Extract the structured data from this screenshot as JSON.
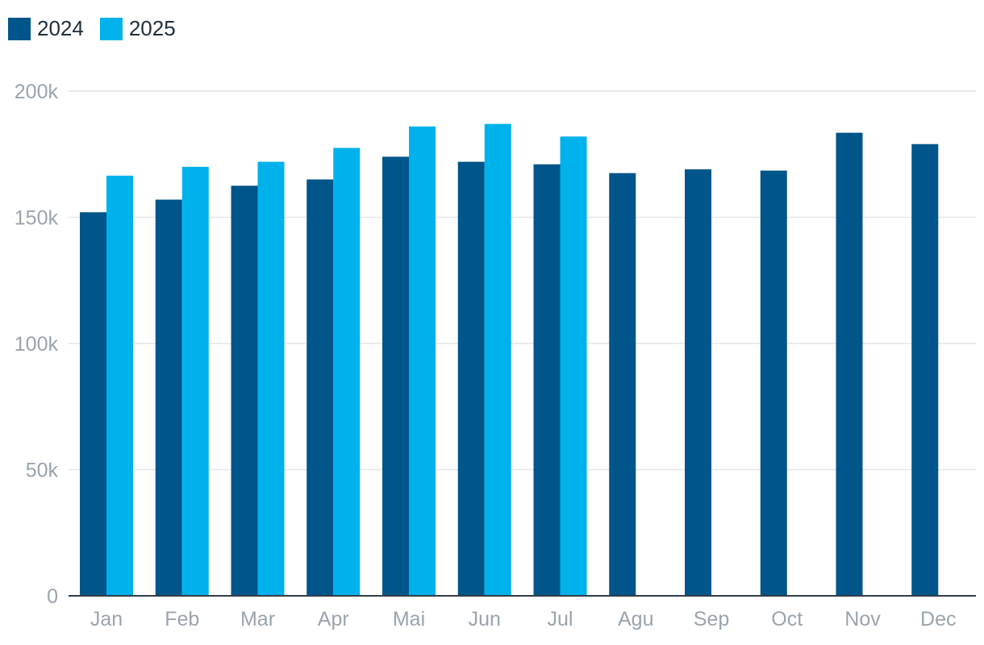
{
  "chart_data": {
    "type": "bar",
    "categories": [
      "Jan",
      "Feb",
      "Mar",
      "Apr",
      "Mai",
      "Jun",
      "Jul",
      "Agu",
      "Sep",
      "Oct",
      "Nov",
      "Dec"
    ],
    "series": [
      {
        "name": "2024",
        "color": "#00558a",
        "values": [
          152000,
          157000,
          162500,
          165000,
          174000,
          172000,
          171000,
          167500,
          169000,
          168500,
          183500,
          179000
        ]
      },
      {
        "name": "2025",
        "color": "#00b2ec",
        "values": [
          166500,
          170000,
          172000,
          177500,
          186000,
          187000,
          182000,
          null,
          null,
          null,
          null,
          null
        ]
      }
    ],
    "yticks": [
      0,
      50000,
      100000,
      150000,
      200000
    ],
    "ytick_labels": [
      "0",
      "50k",
      "100k",
      "150k",
      "200k"
    ],
    "ylim": [
      0,
      200000
    ],
    "grid": true,
    "legend_position": "top-left"
  }
}
